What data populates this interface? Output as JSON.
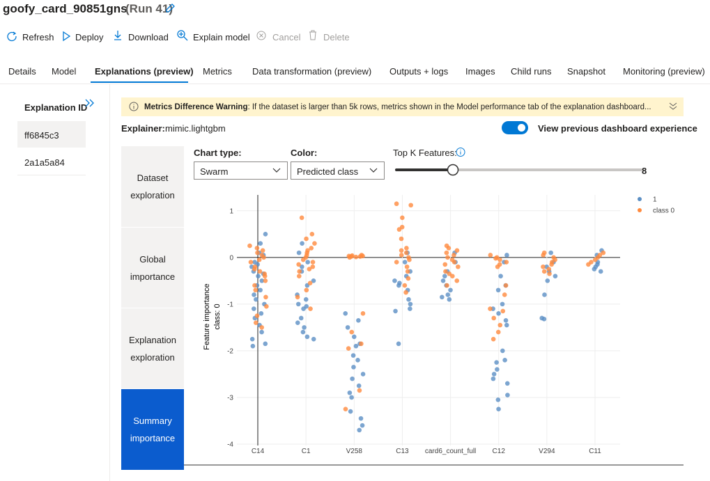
{
  "header": {
    "title": "goofy_card_90851gns",
    "run": "(Run 41)"
  },
  "toolbar": [
    "Refresh",
    "Deploy",
    "Download",
    "Explain model",
    "Cancel",
    "Delete"
  ],
  "tabs": [
    "Details",
    "Model",
    "Explanations (preview)",
    "Metrics",
    "Data transformation (preview)",
    "Outputs + logs",
    "Images",
    "Child runs",
    "Snapshot",
    "Monitoring (preview)"
  ],
  "sidebar": {
    "title": "Explanation ID",
    "items": [
      "ff6845c3",
      "2a1a5a84"
    ]
  },
  "warning": {
    "title": "Metrics Difference Warning",
    "text": ": If the dataset is larger than 5k rows, metrics shown in the Model performance tab of the explanation dashboard..."
  },
  "explainer": {
    "label": "Explainer:",
    "value": "mimic.lightgbm"
  },
  "toggle": "View previous dashboard experience",
  "nav": [
    "Dataset exploration",
    "Global importance",
    "Explanation exploration",
    "Summary importance"
  ],
  "controls": {
    "chart_type_label": "Chart type:",
    "chart_type": "Swarm",
    "color_label": "Color:",
    "color": "Predicted class",
    "top_k_label": "Top K Features:",
    "top_k": 8
  },
  "chart_data": {
    "type": "swarm",
    "y_label": "Feature importance",
    "y_sublabel": "class:  0",
    "categories": [
      "C14",
      "C1",
      "V258",
      "C13",
      "card6_count_full",
      "C12",
      "V294",
      "C11"
    ],
    "ylim": [
      -4.03,
      1.34
    ],
    "yticks": [
      -4,
      -3,
      -2,
      -1,
      0,
      1
    ],
    "grid": true,
    "legend": "top-right",
    "series": [
      {
        "name": "1",
        "color": "#5b8fc4",
        "values": [
          [
            0.5,
            0.3,
            0.1,
            0.05,
            -0.1,
            -0.15,
            -0.2,
            -0.3,
            -0.35,
            -0.4,
            -0.5,
            -0.6,
            -0.7,
            -0.8,
            -0.9,
            -1.0,
            -1.1,
            -1.2,
            -1.3,
            -1.45,
            -1.6,
            -1.75,
            -1.85,
            -1.9
          ],
          [
            0.3,
            0.1,
            -0.1,
            -0.2,
            -0.3,
            -0.5,
            -0.6,
            -0.8,
            -0.9,
            -1.0,
            -1.05,
            -1.1,
            -1.3,
            -1.4,
            -1.5,
            -1.6,
            -1.7,
            -1.75
          ],
          [
            -1.2,
            -1.35,
            -1.5,
            -1.7,
            -1.85,
            -1.9,
            -2.1,
            -2.2,
            -2.35,
            -2.5,
            -2.6,
            -2.75,
            -2.9,
            -3.0,
            -3.3,
            -3.45,
            -3.6,
            -3.7
          ],
          [
            0.1,
            -0.1,
            -0.3,
            -0.4,
            -0.5,
            -0.55,
            -0.6,
            -0.7,
            -0.9,
            -1.0,
            -1.1,
            -1.15,
            -1.85
          ],
          [
            0.1,
            -0.1,
            -0.3,
            -0.4,
            -0.5,
            -0.6,
            -0.7,
            -0.8,
            -0.85,
            -0.9
          ],
          [
            0.05,
            -0.1,
            -0.4,
            -0.6,
            -0.7,
            -1.0,
            -1.1,
            -1.2,
            -1.35,
            -1.45,
            -2.0,
            -2.2,
            -2.25,
            -2.4,
            -2.5,
            -2.6,
            -2.7,
            -2.95,
            -3.05,
            -3.25
          ],
          [
            0.1,
            -0.1,
            -0.2,
            -0.3,
            -0.4,
            -0.5,
            -0.8,
            -1.3,
            -1.32
          ],
          [
            0.15,
            0.05,
            -0.1,
            -0.15,
            -0.2,
            -0.25,
            -0.3
          ]
        ]
      },
      {
        "name": "class 0",
        "color": "#ff8a3d",
        "values": [
          [
            0.25,
            0.2,
            0.15,
            0.1,
            0.05,
            0,
            -0.05,
            -0.1,
            -0.2,
            -0.25,
            -0.3,
            -0.35,
            -0.4,
            -0.5,
            -0.6,
            -0.7,
            -0.85,
            -1.05,
            -1.25,
            -1.4,
            -1.5
          ],
          [
            0.85,
            0.5,
            0.4,
            0.3,
            0.2,
            0.15,
            0.1,
            0.05,
            0,
            -0.05,
            -0.1,
            -0.15,
            -0.2,
            -0.25,
            -0.3,
            -0.4,
            -0.55,
            -0.7,
            -0.85,
            -1.1
          ],
          [
            0.05,
            0.04,
            0.03,
            0.03,
            0.02,
            0.02,
            0.01,
            0,
            -1.2,
            -1.6,
            -1.85,
            -1.95,
            -2.85,
            -3.25
          ],
          [
            1.15,
            1.12,
            0.85,
            0.65,
            0.6,
            0.4,
            0.2,
            0.15,
            0.1,
            0.05,
            0,
            -0.05,
            -0.1,
            -0.2,
            -0.3,
            -0.45,
            -0.6,
            -0.75
          ],
          [
            0.25,
            0.2,
            0.15,
            0.1,
            0.05,
            0,
            -0.05,
            -0.1,
            -0.15,
            -0.2,
            -0.3,
            -0.35,
            -0.4,
            -0.5,
            -0.6
          ],
          [
            0.05,
            0,
            -0.02,
            -0.05,
            -0.1,
            -0.15,
            -0.2,
            -0.6,
            -0.8,
            -1.1,
            -1.15,
            -1.3,
            -1.45,
            -1.6,
            -1.75
          ],
          [
            0.1,
            0.05,
            0,
            -0.05,
            -0.1,
            -0.15,
            -0.2,
            -0.25,
            -0.3,
            -0.35
          ],
          [
            0.1,
            0.05,
            0,
            -0.05,
            -0.1,
            -0.15
          ]
        ]
      }
    ]
  }
}
